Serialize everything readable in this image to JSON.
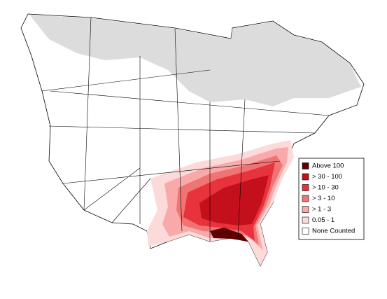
{
  "legend": {
    "items": [
      {
        "label": "Above 100",
        "color": "#5c0000"
      },
      {
        "label": "> 30 - 100",
        "color": "#c4101c"
      },
      {
        "label": "> 10 - 30",
        "color": "#e8323c"
      },
      {
        "label": "> 3 - 10",
        "color": "#f07474"
      },
      {
        "label": "> 1 - 3",
        "color": "#f8aaaa"
      },
      {
        "label": "0.05 - 1",
        "color": "#fcdada"
      },
      {
        "label": "None Counted",
        "color": "#ffffff"
      }
    ]
  }
}
